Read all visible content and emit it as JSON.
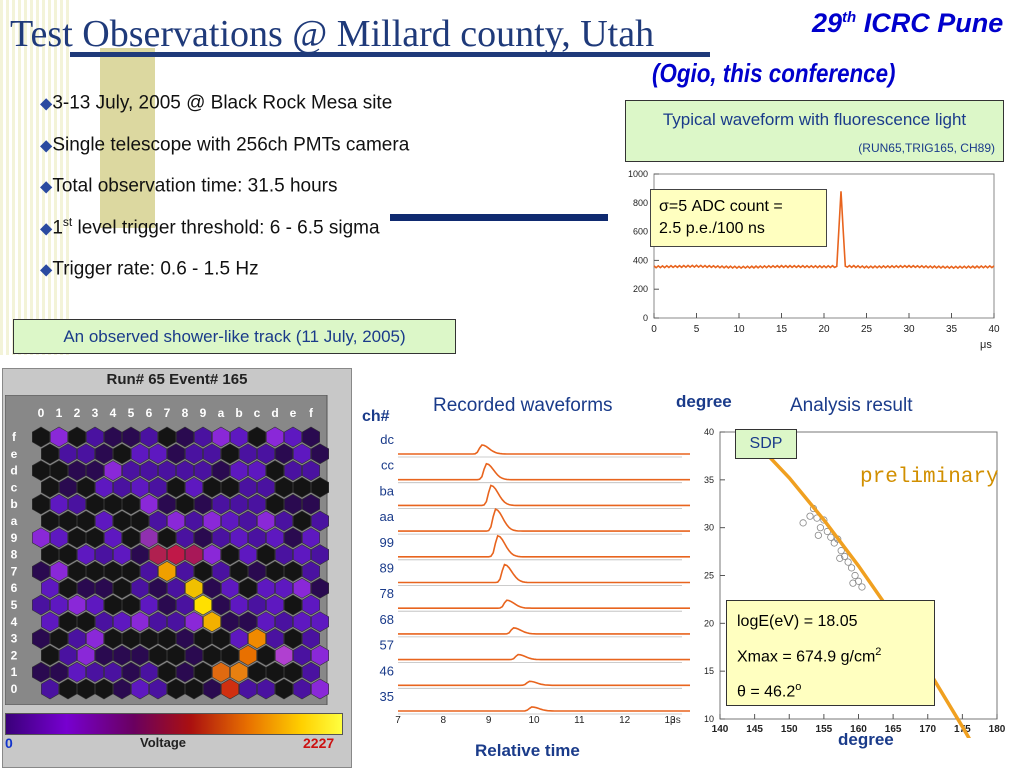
{
  "slide": {
    "title": "Test Observations @ Millard county, Utah",
    "conference": {
      "num": "29",
      "sup": "th",
      "rest": " ICRC Pune"
    },
    "ogio": "(Ogio, this conference)"
  },
  "bullets": [
    {
      "pre": "3-13 July, 2005 @ Black Rock Mesa site",
      "sup": "",
      "post": ""
    },
    {
      "pre": "Single telescope with 256ch PMTs camera",
      "sup": "",
      "post": ""
    },
    {
      "pre": "Total observation time: 31.5 hours",
      "sup": "",
      "post": ""
    },
    {
      "pre": "1",
      "sup": "st",
      "post": " level trigger threshold: 6 - 6.5 sigma"
    },
    {
      "pre": "Trigger rate: 0.6 - 1.5 Hz",
      "sup": "",
      "post": ""
    }
  ],
  "waveform_caption": {
    "line1": "Typical waveform with fluorescence light",
    "line2": "(RUN65,TRIG165, CH89)"
  },
  "track_caption": "An observed shower-like track (11 July, 2005)",
  "sigma_box": {
    "line1": "σ=5 ADC count =",
    "line2": "2.5 p.e./100 ns"
  },
  "hex_panel": {
    "title": "Run# 65 Event# 165",
    "cols": [
      "0",
      "1",
      "2",
      "3",
      "4",
      "5",
      "6",
      "7",
      "8",
      "9",
      "a",
      "b",
      "c",
      "d",
      "e",
      "f"
    ],
    "rows": [
      "f",
      "e",
      "d",
      "c",
      "b",
      "a",
      "9",
      "8",
      "7",
      "6",
      "5",
      "4",
      "3",
      "2",
      "1",
      "0"
    ],
    "colorbar": {
      "min": "0",
      "title": "Voltage",
      "max": "2227"
    },
    "colors": {
      "dark": "#1a1a1a",
      "purple": "#5a14b8",
      "hot": "#ffd000"
    }
  },
  "recorded": {
    "title": "Recorded waveforms",
    "channel_label": "ch#",
    "channels": [
      "dc",
      "cc",
      "ba",
      "aa",
      "99",
      "89",
      "78",
      "68",
      "57",
      "46",
      "35"
    ],
    "xaxis_label": "Relative time",
    "xunit": "μs",
    "xticks": [
      "7",
      "8",
      "9",
      "10",
      "11",
      "12",
      "13"
    ],
    "line_color": "#e8641e"
  },
  "analysis": {
    "title": "Analysis result",
    "ylabel": "degree",
    "xlabel": "degree",
    "sdp": "SDP",
    "preliminary": "preliminary",
    "fit": {
      "line1": "logE(eV)  = 18.05",
      "line2_pre": "Xmax = 674.9 g/cm",
      "line2_sup": "2",
      "line3_pre": "θ = 46.2",
      "line3_sup": "o"
    },
    "fit_color": "#f0a020"
  },
  "chart_data": [
    {
      "type": "line",
      "x": [
        0,
        5,
        10,
        15,
        20,
        21.5,
        22,
        22.5,
        25,
        30,
        35,
        40
      ],
      "values": [
        355,
        360,
        352,
        358,
        356,
        358,
        880,
        360,
        354,
        358,
        352,
        356
      ],
      "xlabel": "μs",
      "xticks": [
        0,
        5,
        10,
        15,
        20,
        25,
        30,
        35,
        40
      ],
      "yticks": [
        0,
        200,
        400,
        600,
        800,
        1000
      ],
      "xlim": [
        0,
        40
      ],
      "ylim": [
        0,
        1000
      ],
      "color": "#e8641e"
    },
    {
      "type": "scatter",
      "xlabel": "degree",
      "ylabel": "degree",
      "xlim": [
        140,
        180
      ],
      "ylim": [
        10,
        40
      ],
      "xticks": [
        140,
        145,
        150,
        155,
        160,
        165,
        170,
        175,
        180
      ],
      "yticks": [
        10,
        15,
        20,
        25,
        30,
        35,
        40
      ],
      "points": [
        [
          152,
          30.5
        ],
        [
          153,
          31.2
        ],
        [
          153.5,
          32
        ],
        [
          154,
          31
        ],
        [
          154.5,
          30
        ],
        [
          155,
          30.8
        ],
        [
          155.5,
          29.6
        ],
        [
          156,
          29
        ],
        [
          156.5,
          28.4
        ],
        [
          157,
          28.8
        ],
        [
          157.5,
          27.6
        ],
        [
          158,
          27
        ],
        [
          158.5,
          26.4
        ],
        [
          159,
          25.8
        ],
        [
          159.5,
          25
        ],
        [
          160,
          24.4
        ],
        [
          160.5,
          23.8
        ],
        [
          154.2,
          29.2
        ],
        [
          157.3,
          26.8
        ],
        [
          159.2,
          24.2
        ]
      ],
      "fit_x": [
        144,
        150,
        155,
        160,
        165,
        170,
        175,
        179
      ],
      "fit_y": [
        39.8,
        35.2,
        30.8,
        26,
        20.8,
        15.2,
        9.2,
        4.2
      ]
    }
  ]
}
